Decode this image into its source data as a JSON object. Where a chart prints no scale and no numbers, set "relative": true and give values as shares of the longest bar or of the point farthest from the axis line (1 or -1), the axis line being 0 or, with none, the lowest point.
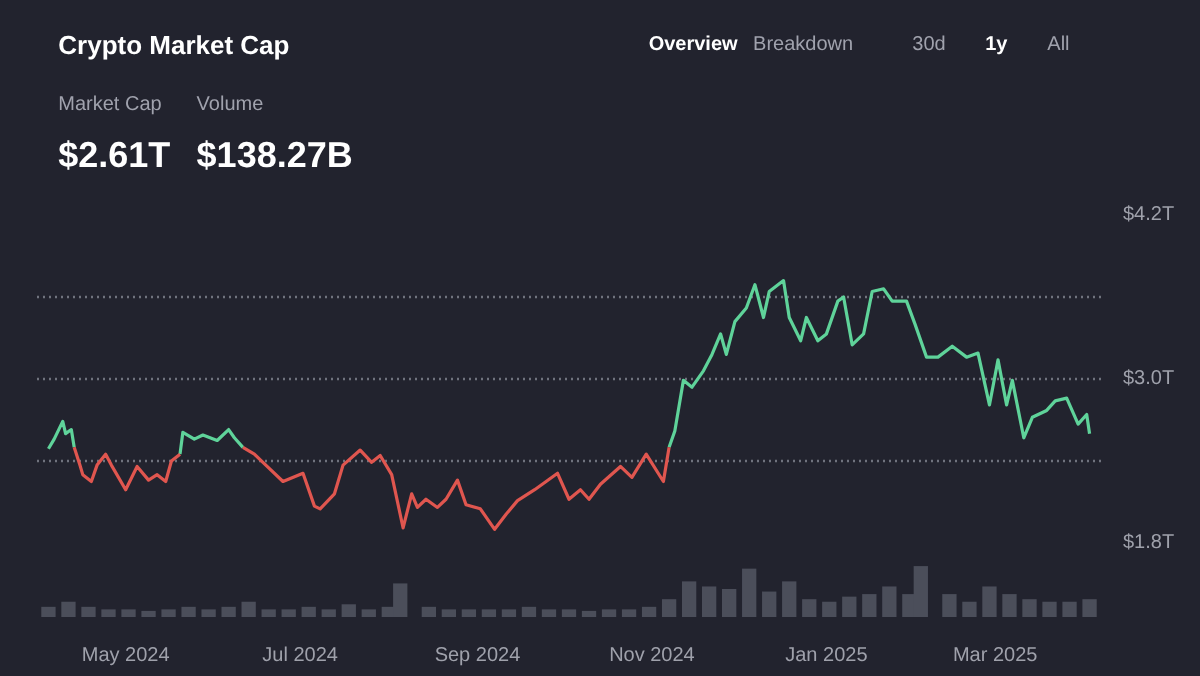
{
  "chart_data": [
    {
      "type": "other",
      "title": "Crypto Market Cap",
      "annotations": [
        "Market Cap",
        "Volume",
        "$2.61T",
        "$138.27B",
        "Overview",
        "Breakdown",
        "30d",
        "1y",
        "All"
      ]
    },
    {
      "type": "line",
      "x": [
        "2024-04-04",
        "2024-04-06",
        "2024-04-09",
        "2024-04-10",
        "2024-04-12",
        "2024-04-13",
        "2024-04-15",
        "2024-04-16",
        "2024-04-19",
        "2024-04-21",
        "2024-04-24",
        "2024-04-26",
        "2024-05-01",
        "2024-05-05",
        "2024-05-09",
        "2024-05-12",
        "2024-05-15",
        "2024-05-17",
        "2024-05-20",
        "2024-05-21",
        "2024-05-25",
        "2024-05-28",
        "2024-06-02",
        "2024-06-06",
        "2024-06-08",
        "2024-06-11",
        "2024-06-15",
        "2024-06-19",
        "2024-06-25",
        "2024-07-02",
        "2024-07-06",
        "2024-07-08",
        "2024-07-13",
        "2024-07-16",
        "2024-07-22",
        "2024-07-26",
        "2024-07-29",
        "2024-08-02",
        "2024-08-06",
        "2024-08-09",
        "2024-08-11",
        "2024-08-14",
        "2024-08-18",
        "2024-08-21",
        "2024-08-25",
        "2024-08-28",
        "2024-09-02",
        "2024-09-07",
        "2024-09-11",
        "2024-09-15",
        "2024-09-21",
        "2024-09-25",
        "2024-09-29",
        "2024-10-03",
        "2024-10-07",
        "2024-10-10",
        "2024-10-14",
        "2024-10-21",
        "2024-10-25",
        "2024-10-30",
        "2024-11-05",
        "2024-11-07",
        "2024-11-09",
        "2024-11-12",
        "2024-11-15",
        "2024-11-19",
        "2024-11-22",
        "2024-11-25",
        "2024-11-27",
        "2024-11-30",
        "2024-12-04",
        "2024-12-07",
        "2024-12-10",
        "2024-12-12",
        "2024-12-17",
        "2024-12-19",
        "2024-12-23",
        "2024-12-25",
        "2024-12-29",
        "2025-01-01",
        "2025-01-05",
        "2025-01-07",
        "2025-01-10",
        "2025-01-14",
        "2025-01-17",
        "2025-01-21",
        "2025-01-24",
        "2025-01-29",
        "2025-02-01",
        "2025-02-05",
        "2025-02-09",
        "2025-02-14",
        "2025-02-19",
        "2025-02-23",
        "2025-02-27",
        "2025-03-02",
        "2025-03-05",
        "2025-03-07",
        "2025-03-11",
        "2025-03-14",
        "2025-03-19",
        "2025-03-22",
        "2025-03-26",
        "2025-03-30",
        "2025-04-02",
        "2025-04-03"
      ],
      "series": [
        {
          "color": "#5fd39a",
          "values": [
            2.49,
            2.56,
            2.69,
            2.6,
            2.63,
            2.5,
            null,
            null,
            null,
            null,
            null,
            null,
            null,
            null,
            null,
            null,
            null,
            null,
            2.45,
            2.61,
            2.56,
            2.59,
            2.55,
            2.63,
            2.57,
            2.5,
            null,
            null,
            null,
            null,
            null,
            null,
            null,
            null,
            null,
            null,
            null,
            null,
            null,
            null,
            null,
            null,
            null,
            null,
            null,
            null,
            null,
            null,
            null,
            null,
            null,
            null,
            null,
            null,
            null,
            null,
            null,
            null,
            null,
            null,
            null,
            2.5,
            2.62,
            2.99,
            2.94,
            3.06,
            3.18,
            3.33,
            3.18,
            3.42,
            3.52,
            3.69,
            3.45,
            3.64,
            3.72,
            3.45,
            3.28,
            3.45,
            3.28,
            3.33,
            3.57,
            3.6,
            3.25,
            3.33,
            3.64,
            3.66,
            3.57,
            3.57,
            3.4,
            3.16,
            3.16,
            3.24,
            3.16,
            3.19,
            2.81,
            3.14,
            2.81,
            2.99,
            2.57,
            2.72,
            2.77,
            2.84,
            2.86,
            2.67,
            2.74,
            2.6
          ]
        },
        {
          "color": "#e0564f",
          "values": [
            null,
            null,
            null,
            null,
            null,
            2.5,
            2.37,
            2.3,
            2.25,
            2.37,
            2.45,
            2.37,
            2.19,
            2.36,
            2.26,
            2.3,
            2.25,
            2.4,
            2.45,
            null,
            null,
            null,
            null,
            null,
            null,
            2.5,
            2.45,
            2.37,
            2.25,
            2.31,
            2.07,
            2.05,
            2.16,
            2.37,
            2.48,
            2.39,
            2.44,
            2.3,
            1.91,
            2.16,
            2.06,
            2.12,
            2.06,
            2.12,
            2.26,
            2.08,
            2.05,
            1.9,
            2.01,
            2.11,
            2.19,
            2.25,
            2.31,
            2.12,
            2.19,
            2.12,
            2.23,
            2.36,
            2.28,
            2.45,
            2.25,
            2.5,
            null,
            null,
            null,
            null,
            null,
            null,
            null,
            null,
            null,
            null,
            null,
            null,
            null,
            null,
            null,
            null,
            null,
            null,
            null,
            null,
            null,
            null,
            null,
            null,
            null,
            null,
            null,
            null,
            null,
            null,
            null,
            null,
            null,
            null,
            null,
            null,
            null,
            null,
            null,
            null,
            null,
            null,
            null,
            null
          ]
        }
      ],
      "xlim": [
        "2024-03-31",
        "2025-04-07"
      ],
      "ylim": [
        1.8,
        4.2
      ],
      "yticks": [
        {
          "value": 1.8,
          "label": "$1.8T"
        },
        {
          "value": 2.4,
          "label": null
        },
        {
          "value": 3.0,
          "label": "$3.0T"
        },
        {
          "value": 3.6,
          "label": null
        },
        {
          "value": 4.2,
          "label": "$4.2T"
        }
      ],
      "grid": "y",
      "tick_labels": "y"
    },
    {
      "type": "bar",
      "relative": true,
      "color": "#4b4e5a",
      "x": [
        "2024-04-04",
        "2024-04-11",
        "2024-04-18",
        "2024-04-25",
        "2024-05-02",
        "2024-05-09",
        "2024-05-16",
        "2024-05-23",
        "2024-05-30",
        "2024-06-06",
        "2024-06-13",
        "2024-06-20",
        "2024-06-27",
        "2024-07-04",
        "2024-07-11",
        "2024-07-18",
        "2024-07-25",
        "2024-08-01",
        "2024-08-05",
        "2024-08-15",
        "2024-08-22",
        "2024-08-29",
        "2024-09-05",
        "2024-09-12",
        "2024-09-19",
        "2024-09-26",
        "2024-10-03",
        "2024-10-10",
        "2024-10-17",
        "2024-10-24",
        "2024-10-31",
        "2024-11-07",
        "2024-11-14",
        "2024-11-21",
        "2024-11-28",
        "2024-12-05",
        "2024-12-12",
        "2024-12-19",
        "2024-12-26",
        "2025-01-02",
        "2025-01-09",
        "2025-01-16",
        "2025-01-23",
        "2025-01-30",
        "2025-02-03",
        "2025-02-13",
        "2025-02-20",
        "2025-02-27",
        "2025-03-06",
        "2025-03-13",
        "2025-03-20",
        "2025-03-27",
        "2025-04-03"
      ],
      "values": [
        0.2,
        0.3,
        0.2,
        0.15,
        0.15,
        0.12,
        0.15,
        0.2,
        0.15,
        0.2,
        0.3,
        0.15,
        0.15,
        0.2,
        0.15,
        0.25,
        0.15,
        0.2,
        0.66,
        0.2,
        0.15,
        0.15,
        0.15,
        0.15,
        0.2,
        0.15,
        0.15,
        0.12,
        0.15,
        0.15,
        0.2,
        0.35,
        0.7,
        0.6,
        0.55,
        0.95,
        0.5,
        0.7,
        0.35,
        0.3,
        0.4,
        0.45,
        0.6,
        0.45,
        1.0,
        0.45,
        0.3,
        0.6,
        0.45,
        0.35,
        0.3,
        0.3,
        0.35
      ],
      "xlim": [
        "2024-03-31",
        "2025-04-07"
      ],
      "xticks": [
        {
          "value": "2024-05-01",
          "label": "May 2024"
        },
        {
          "value": "2024-07-01",
          "label": "Jul 2024"
        },
        {
          "value": "2024-09-01",
          "label": "Sep 2024"
        },
        {
          "value": "2024-11-01",
          "label": "Nov 2024"
        },
        {
          "value": "2025-01-01",
          "label": "Jan 2025"
        },
        {
          "value": "2025-03-01",
          "label": "Mar 2025"
        }
      ],
      "tick_labels": "x"
    }
  ]
}
